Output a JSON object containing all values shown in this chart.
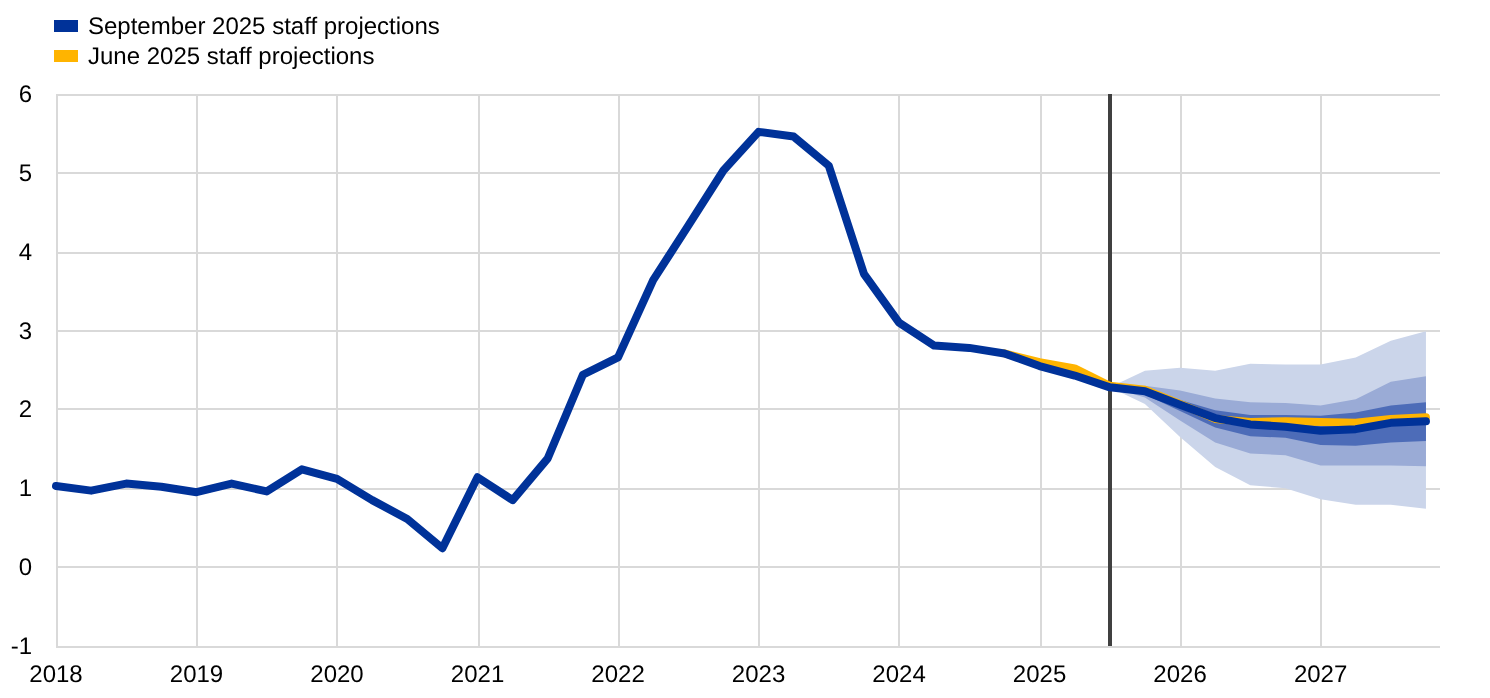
{
  "chart_data": {
    "type": "line",
    "x": [
      2018,
      2018.25,
      2018.5,
      2018.75,
      2019,
      2019.25,
      2019.5,
      2019.75,
      2020,
      2020.25,
      2020.5,
      2020.75,
      2021,
      2021.25,
      2021.5,
      2021.75,
      2022,
      2022.25,
      2022.5,
      2022.75,
      2023,
      2023.25,
      2023.5,
      2023.75,
      2024,
      2024.25,
      2024.5,
      2024.75,
      2025,
      2025.25,
      2025.5,
      2025.75,
      2026,
      2026.25,
      2026.5,
      2026.75,
      2027,
      2027.25,
      2027.5,
      2027.75
    ],
    "series": [
      {
        "color": "#cbd5ea",
        "x": [
          2025.5,
          2025.75,
          2026,
          2026.25,
          2026.5,
          2026.75,
          2027,
          2027.25,
          2027.5,
          2027.75
        ],
        "values": [
          null,
          null,
          null,
          null,
          null,
          null,
          null,
          null,
          null,
          null
        ],
        "lower": [
          2.28,
          2.07,
          1.65,
          1.27,
          1.04,
          1.0,
          0.86,
          0.79,
          0.79,
          0.74
        ],
        "upper": [
          2.28,
          2.49,
          2.53,
          2.49,
          2.58,
          2.57,
          2.57,
          2.66,
          2.87,
          2.99
        ]
      },
      {
        "color": "#9aabd6",
        "x": [
          2025.5,
          2025.75,
          2026,
          2026.25,
          2026.5,
          2026.75,
          2027,
          2027.25,
          2027.5,
          2027.75
        ],
        "values": [
          null,
          null,
          null,
          null,
          null,
          null,
          null,
          null,
          null,
          null
        ],
        "lower": [
          2.28,
          2.15,
          1.86,
          1.58,
          1.44,
          1.42,
          1.29,
          1.29,
          1.29,
          1.28
        ],
        "upper": [
          2.28,
          2.3,
          2.24,
          2.14,
          2.09,
          2.08,
          2.05,
          2.13,
          2.35,
          2.42
        ]
      },
      {
        "color": "#4d6cb8",
        "x": [
          2025.5,
          2025.75,
          2026,
          2026.25,
          2026.5,
          2026.75,
          2027,
          2027.25,
          2027.5,
          2027.75
        ],
        "values": [
          null,
          null,
          null,
          null,
          null,
          null,
          null,
          null,
          null,
          null
        ],
        "lower": [
          2.28,
          2.19,
          1.98,
          1.77,
          1.66,
          1.64,
          1.55,
          1.54,
          1.58,
          1.6
        ],
        "upper": [
          2.28,
          2.26,
          2.12,
          1.99,
          1.93,
          1.93,
          1.92,
          1.96,
          2.05,
          2.09
        ]
      },
      {
        "name": "June 2025 staff projections",
        "color": "#ffb400",
        "x": [
          2024.75,
          2025,
          2025.25,
          2025.5,
          2025.75,
          2026,
          2026.25,
          2026.5,
          2026.75,
          2027,
          2027.25,
          2027.5,
          2027.75
        ],
        "values": [
          2.71,
          2.6,
          2.52,
          2.3,
          2.25,
          2.07,
          1.88,
          1.84,
          1.85,
          1.84,
          1.83,
          1.88,
          1.9
        ]
      },
      {
        "name": "September 2025 staff projections",
        "color": "#003299",
        "values": [
          1.03,
          0.97,
          1.06,
          1.02,
          0.95,
          1.06,
          0.96,
          1.24,
          1.12,
          0.85,
          0.61,
          0.24,
          1.14,
          0.85,
          1.38,
          2.44,
          2.66,
          3.64,
          4.33,
          5.03,
          5.52,
          5.46,
          5.09,
          3.72,
          3.1,
          2.81,
          2.78,
          2.71,
          2.55,
          2.43,
          2.28,
          2.23,
          2.06,
          1.89,
          1.81,
          1.78,
          1.73,
          1.75,
          1.83,
          1.85
        ]
      }
    ],
    "xlim": [
      2018,
      2027.85
    ],
    "xticks": [
      2018,
      2019,
      2020,
      2021,
      2022,
      2023,
      2024,
      2025,
      2026,
      2027
    ],
    "ylim": [
      -1,
      6
    ],
    "yticks": [
      -1,
      0,
      1,
      2,
      3,
      4,
      5,
      6
    ],
    "ref_lines": [
      {
        "axis": "x",
        "value": 2025.5,
        "color": "#404040"
      }
    ],
    "grid": true,
    "legend": "top left",
    "marker": "none",
    "line_style": "solid"
  }
}
